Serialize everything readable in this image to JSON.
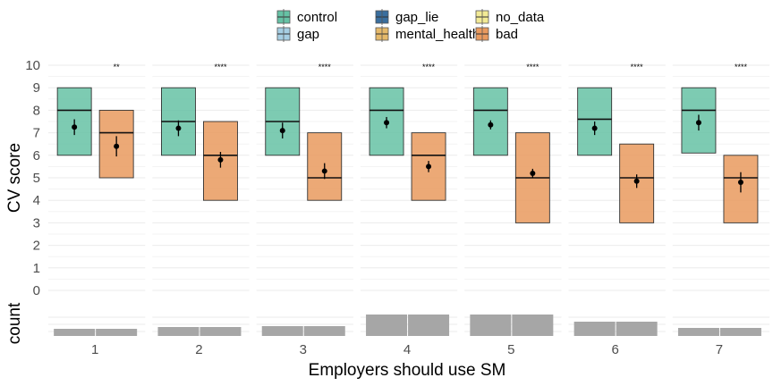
{
  "legend": {
    "items": [
      {
        "label": "control",
        "color": "#66c2a5"
      },
      {
        "label": "gap",
        "color": "#a6cee3"
      },
      {
        "label": "gap_lie",
        "color": "#3a6e9e"
      },
      {
        "label": "mental_health",
        "color": "#e5b96a"
      },
      {
        "label": "no_data",
        "color": "#f2ea96"
      },
      {
        "label": "bad",
        "color": "#e99a5e"
      }
    ]
  },
  "chart_data": {
    "type": "box",
    "xlabel": "Employers should use SM",
    "ylabel": "CV score",
    "ylabel_count": "count",
    "ylim": [
      0,
      10
    ],
    "yticks": [
      0,
      1,
      2,
      3,
      4,
      5,
      6,
      7,
      8,
      9,
      10
    ],
    "categories": [
      "1",
      "2",
      "3",
      "4",
      "5",
      "6",
      "7"
    ],
    "significance": [
      "**",
      "****",
      "****",
      "****",
      "****",
      "****",
      "****"
    ],
    "series": [
      {
        "name": "control",
        "color": "#66c2a5",
        "q1": [
          6,
          6,
          6,
          6,
          6,
          6,
          6.1
        ],
        "median": [
          8,
          7.5,
          7.5,
          8,
          8,
          7.6,
          8
        ],
        "q3": [
          9,
          9,
          9,
          9,
          9,
          9,
          9
        ],
        "mean": [
          7.25,
          7.2,
          7.1,
          7.45,
          7.35,
          7.2,
          7.45
        ],
        "ci_low": [
          6.9,
          6.85,
          6.75,
          7.2,
          7.15,
          6.9,
          7.1
        ],
        "ci_high": [
          7.6,
          7.55,
          7.45,
          7.7,
          7.55,
          7.5,
          7.8
        ]
      },
      {
        "name": "bad",
        "color": "#e99a5e",
        "q1": [
          5,
          4,
          4,
          4,
          3,
          3,
          3
        ],
        "median": [
          7,
          6,
          5,
          6,
          5,
          5,
          5
        ],
        "q3": [
          8,
          7.5,
          7,
          7,
          7,
          6.5,
          6
        ],
        "mean": [
          6.4,
          5.8,
          5.3,
          5.5,
          5.2,
          4.85,
          4.8
        ],
        "ci_low": [
          5.95,
          5.45,
          4.95,
          5.25,
          5.0,
          4.55,
          4.35
        ],
        "ci_high": [
          6.85,
          6.15,
          5.65,
          5.75,
          5.4,
          5.15,
          5.25
        ]
      }
    ],
    "count_bars": {
      "color": "#a6a6a6",
      "values": [
        [
          8,
          8
        ],
        [
          10,
          10
        ],
        [
          11,
          11
        ],
        [
          24,
          24
        ],
        [
          24,
          24
        ],
        [
          16,
          16
        ],
        [
          9,
          9
        ]
      ]
    }
  }
}
